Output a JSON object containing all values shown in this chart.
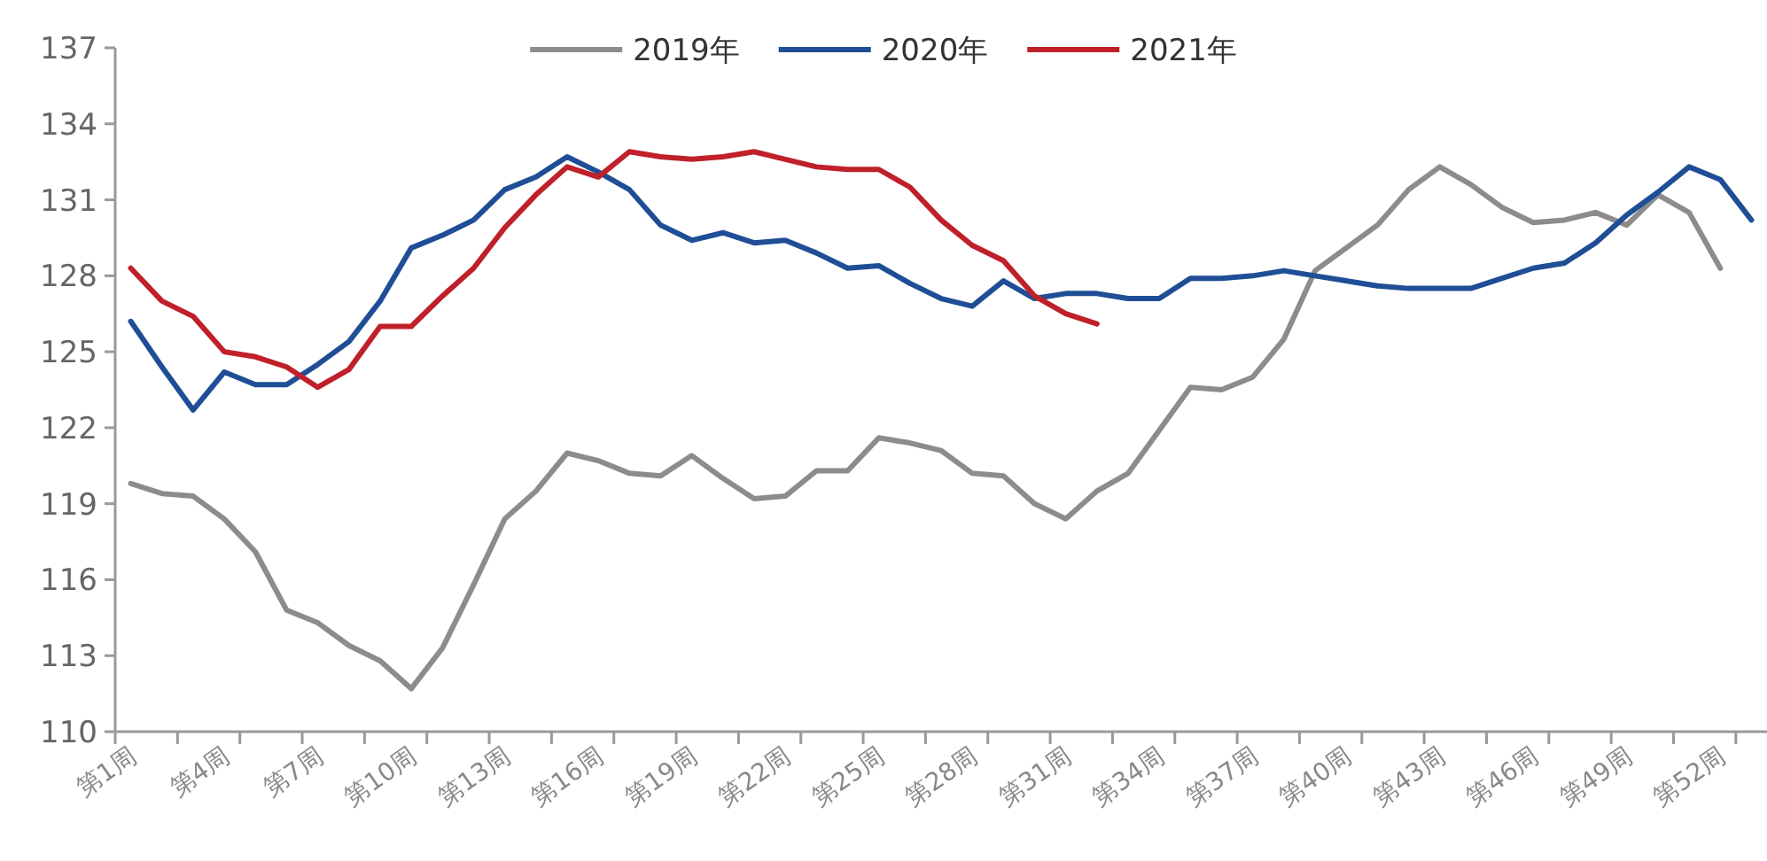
{
  "chart_data": {
    "type": "line",
    "categories": [
      "第1周",
      null,
      null,
      "第4周",
      null,
      null,
      "第7周",
      null,
      null,
      "第10周",
      null,
      null,
      "第13周",
      null,
      null,
      "第16周",
      null,
      null,
      "第19周",
      null,
      null,
      "第22周",
      null,
      null,
      "第25周",
      null,
      null,
      "第28周",
      null,
      null,
      "第31周",
      null,
      null,
      "第34周",
      null,
      null,
      "第37周",
      null,
      null,
      "第40周",
      null,
      null,
      "第43周",
      null,
      null,
      "第46周",
      null,
      null,
      "第49周",
      null,
      null,
      "第52周",
      null
    ],
    "series": [
      {
        "name": "2019年",
        "color": "#8c8c8c",
        "values": [
          119.8,
          119.4,
          119.3,
          118.4,
          117.1,
          114.8,
          114.3,
          113.4,
          112.8,
          111.7,
          113.3,
          115.8,
          118.4,
          119.5,
          121.0,
          120.7,
          120.2,
          120.1,
          120.9,
          120.0,
          119.2,
          119.3,
          120.3,
          120.3,
          121.6,
          121.4,
          121.1,
          120.2,
          120.1,
          119.0,
          118.4,
          119.5,
          120.2,
          121.9,
          123.6,
          123.5,
          124.0,
          125.5,
          128.2,
          129.1,
          130.0,
          131.4,
          132.3,
          131.6,
          130.7,
          130.1,
          130.2,
          130.5,
          130.0,
          131.2,
          130.5,
          128.3,
          null
        ]
      },
      {
        "name": "2020年",
        "color": "#1f4e96",
        "values": [
          126.2,
          124.4,
          122.7,
          124.2,
          123.7,
          123.7,
          124.5,
          125.4,
          127.0,
          129.1,
          129.6,
          130.2,
          131.4,
          131.9,
          132.7,
          132.1,
          131.4,
          130.0,
          129.4,
          129.7,
          129.3,
          129.4,
          128.9,
          128.3,
          128.4,
          127.7,
          127.1,
          126.8,
          127.8,
          127.1,
          127.3,
          127.3,
          127.1,
          127.1,
          127.9,
          127.9,
          128.0,
          128.2,
          128.0,
          127.8,
          127.6,
          127.5,
          127.5,
          127.5,
          127.9,
          128.3,
          128.5,
          129.3,
          130.4,
          131.3,
          132.3,
          131.8,
          130.2
        ]
      },
      {
        "name": "2021年",
        "color": "#c0202a",
        "values": [
          128.3,
          127.0,
          126.4,
          125.0,
          124.8,
          124.4,
          123.6,
          124.3,
          126.0,
          126.0,
          127.2,
          128.3,
          129.9,
          131.2,
          132.3,
          131.9,
          132.9,
          132.7,
          132.6,
          132.7,
          132.9,
          132.6,
          132.3,
          132.2,
          132.2,
          131.5,
          130.2,
          129.2,
          128.6,
          127.2,
          126.5,
          126.1,
          null,
          null,
          null,
          null,
          null,
          null,
          null,
          null,
          null,
          null,
          null,
          null,
          null,
          null,
          null,
          null,
          null,
          null,
          null,
          null,
          null
        ]
      }
    ],
    "ylim": [
      110,
      137
    ],
    "yticks": [
      110,
      113,
      116,
      119,
      122,
      125,
      128,
      131,
      134,
      137
    ],
    "legend": "top",
    "grid": false,
    "marker": "none",
    "line_style": "solid"
  }
}
